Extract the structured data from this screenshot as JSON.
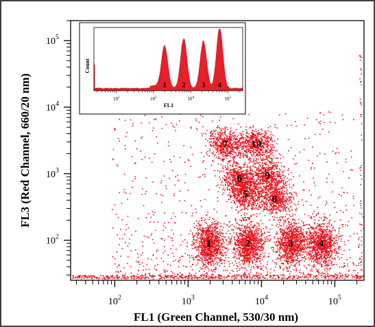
{
  "chart_data": [
    {
      "type": "scatter",
      "xlabel": "FL1 (Green Channel, 530/30 nm)",
      "ylabel": "FL3 (Red Channel, 660/20 nm)",
      "x_scale": "log",
      "y_scale": "log",
      "xlim": [
        25,
        250000
      ],
      "ylim": [
        25,
        200000
      ],
      "x_ticks": [
        {
          "value": 100,
          "base": "10",
          "exp": "2"
        },
        {
          "value": 1000,
          "base": "10",
          "exp": "3"
        },
        {
          "value": 10000,
          "base": "10",
          "exp": "4"
        },
        {
          "value": 100000,
          "base": "10",
          "exp": "5"
        }
      ],
      "y_ticks": [
        {
          "value": 100,
          "base": "10",
          "exp": "2"
        },
        {
          "value": 1000,
          "base": "10",
          "exp": "3"
        },
        {
          "value": 10000,
          "base": "10",
          "exp": "4"
        },
        {
          "value": 100000,
          "base": "10",
          "exp": "5"
        }
      ],
      "point_color": "#e8101a",
      "clusters": [
        {
          "label": "1",
          "x": 1900,
          "y": 90
        },
        {
          "label": "2",
          "x": 6500,
          "y": 90
        },
        {
          "label": "3",
          "x": 25000,
          "y": 90
        },
        {
          "label": "4",
          "x": 65000,
          "y": 90
        },
        {
          "label": "5",
          "x": 6000,
          "y": 500
        },
        {
          "label": "6",
          "x": 5000,
          "y": 850
        },
        {
          "label": "7",
          "x": 3200,
          "y": 2800
        },
        {
          "label": "8",
          "x": 15000,
          "y": 420
        },
        {
          "label": "9",
          "x": 12000,
          "y": 950
        },
        {
          "label": "10",
          "x": 8500,
          "y": 2800
        }
      ]
    },
    {
      "type": "area",
      "xlabel": "FL1",
      "ylabel": "Count",
      "x_scale": "log",
      "xlim": [
        25,
        250000
      ],
      "x_ticks": [
        {
          "value": 100,
          "base": "10",
          "exp": "2"
        },
        {
          "value": 1000,
          "base": "10",
          "exp": "3"
        },
        {
          "value": 10000,
          "base": "10",
          "exp": "4"
        },
        {
          "value": 100000,
          "base": "10",
          "exp": "5"
        }
      ],
      "fill_color": "#e8202a",
      "peaks": [
        {
          "label": "1",
          "x": 2000,
          "height": 0.68
        },
        {
          "label": "2",
          "x": 6500,
          "height": 0.82
        },
        {
          "label": "3",
          "x": 22000,
          "height": 0.78
        },
        {
          "label": "4",
          "x": 60000,
          "height": 1.0
        }
      ]
    }
  ]
}
